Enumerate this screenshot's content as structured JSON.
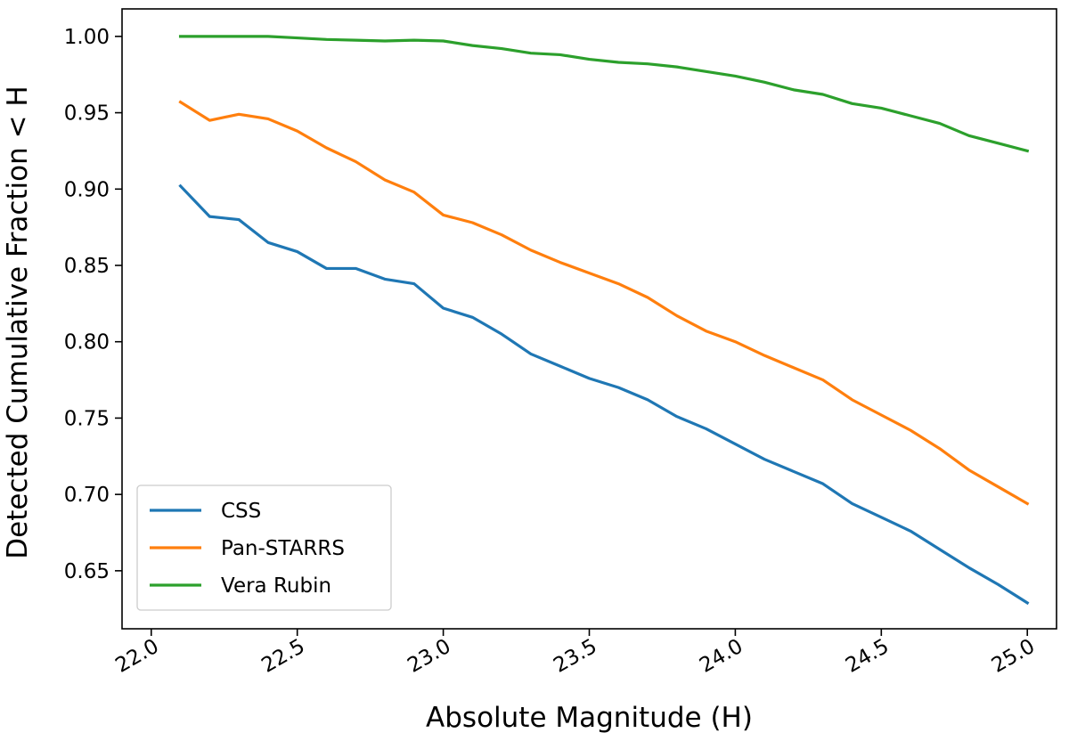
{
  "chart_data": {
    "type": "line",
    "title": "",
    "xlabel": "Absolute Magnitude (H)",
    "ylabel": "Detected Cumulative Fraction < H",
    "xlim": [
      21.9,
      25.1
    ],
    "ylim": [
      0.612,
      1.018
    ],
    "xticks": [
      22.0,
      22.5,
      23.0,
      23.5,
      24.0,
      24.5,
      25.0
    ],
    "xtick_labels": [
      "22.0",
      "22.5",
      "23.0",
      "23.5",
      "24.0",
      "24.5",
      "25.0"
    ],
    "yticks": [
      0.65,
      0.7,
      0.75,
      0.8,
      0.85,
      0.9,
      0.95,
      1.0
    ],
    "ytick_labels": [
      "0.65",
      "0.70",
      "0.75",
      "0.80",
      "0.85",
      "0.90",
      "0.95",
      "1.00"
    ],
    "legend_position": "lower-left",
    "grid": false,
    "x": [
      22.1,
      22.2,
      22.3,
      22.4,
      22.5,
      22.6,
      22.7,
      22.8,
      22.9,
      23.0,
      23.1,
      23.2,
      23.3,
      23.4,
      23.5,
      23.6,
      23.7,
      23.8,
      23.9,
      24.0,
      24.1,
      24.2,
      24.3,
      24.4,
      24.5,
      24.6,
      24.7,
      24.8,
      24.9,
      25.0
    ],
    "series": [
      {
        "name": "CSS",
        "color": "#1f77b4",
        "values": [
          0.902,
          0.882,
          0.88,
          0.865,
          0.859,
          0.848,
          0.848,
          0.841,
          0.838,
          0.822,
          0.816,
          0.805,
          0.792,
          0.784,
          0.776,
          0.77,
          0.762,
          0.751,
          0.743,
          0.733,
          0.723,
          0.715,
          0.707,
          0.694,
          0.685,
          0.676,
          0.664,
          0.652,
          0.641,
          0.629
        ]
      },
      {
        "name": "Pan-STARRS",
        "color": "#ff7f0e",
        "values": [
          0.957,
          0.945,
          0.949,
          0.946,
          0.938,
          0.927,
          0.918,
          0.906,
          0.898,
          0.883,
          0.878,
          0.87,
          0.86,
          0.852,
          0.845,
          0.838,
          0.829,
          0.817,
          0.807,
          0.8,
          0.791,
          0.783,
          0.775,
          0.762,
          0.752,
          0.742,
          0.73,
          0.716,
          0.705,
          0.694
        ]
      },
      {
        "name": "Vera Rubin",
        "color": "#2ca02c",
        "values": [
          1.0,
          1.0,
          1.0,
          1.0,
          0.999,
          0.998,
          0.9975,
          0.997,
          0.9975,
          0.997,
          0.994,
          0.992,
          0.989,
          0.988,
          0.985,
          0.983,
          0.982,
          0.98,
          0.977,
          0.974,
          0.97,
          0.965,
          0.962,
          0.956,
          0.953,
          0.948,
          0.943,
          0.935,
          0.93,
          0.925
        ]
      }
    ]
  }
}
